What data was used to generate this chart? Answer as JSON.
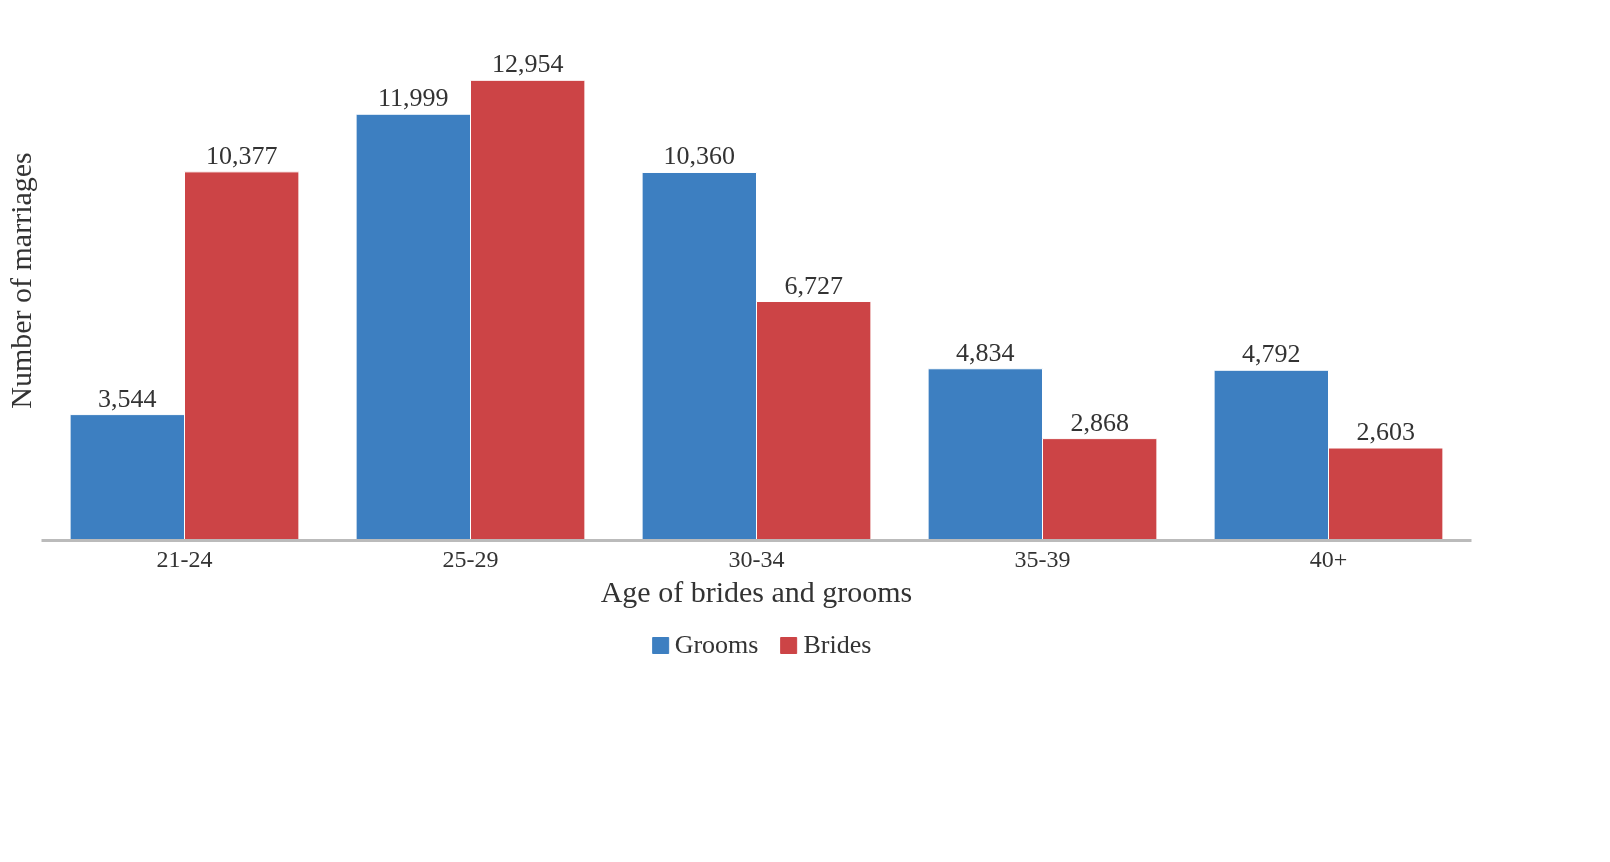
{
  "chart_data": {
    "type": "bar",
    "xlabel": "Age of brides and grooms",
    "ylabel": "Number of marriages",
    "categories": [
      "21-24",
      "25-29",
      "30-34",
      "35-39",
      "40+"
    ],
    "series": [
      {
        "name": "Grooms",
        "color": "#3d7fc1",
        "values": [
          3544,
          11999,
          10360,
          4834,
          4792
        ],
        "value_labels": [
          "3,544",
          "11,999",
          "10,360",
          "4,834",
          "4,792"
        ]
      },
      {
        "name": "Brides",
        "color": "#cc4446",
        "values": [
          10377,
          12954,
          6727,
          2868,
          2603
        ],
        "value_labels": [
          "10,377",
          "12,954",
          "6,727",
          "2,868",
          "2,603"
        ]
      }
    ],
    "grid": false,
    "legend": "bottom"
  }
}
